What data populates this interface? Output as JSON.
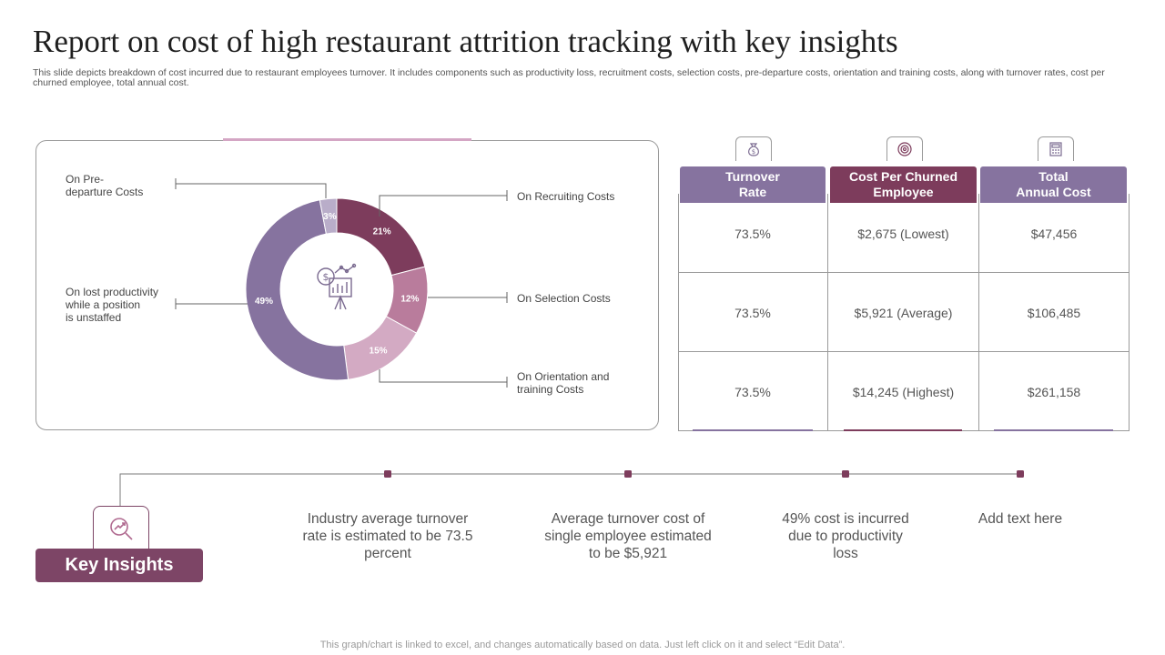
{
  "title": "Report on cost of high restaurant attrition tracking with key insights",
  "description": "This slide depicts breakdown of cost incurred due to restaurant employees turnover. It includes components such as productivity loss, recruitment costs, selection costs, pre-departure costs, orientation and training costs, along with turnover rates, cost per churned employee, total annual cost.",
  "chart_data": {
    "type": "pie",
    "variant": "donut",
    "categories": [
      "On Recruiting Costs",
      "On Selection Costs",
      "On Orientation and training Costs",
      "On lost productivity while a position is unstaffed",
      "On Pre- departure Costs"
    ],
    "values": [
      21,
      12,
      15,
      49,
      3
    ],
    "data_labels": [
      "21%",
      "12%",
      "15%",
      "49%",
      "3%"
    ],
    "colors": [
      "#7d3c5c",
      "#b97c9c",
      "#d3aac3",
      "#86739f",
      "#b9adc9"
    ],
    "center_icon": "dollar-presentation-icon",
    "callouts": {
      "pre_departure": [
        "On Pre-",
        "departure Costs"
      ],
      "lost_productivity": [
        "On lost productivity",
        "while a position",
        "is unstaffed"
      ],
      "recruiting": [
        "On Recruiting Costs"
      ],
      "selection": [
        "On Selection Costs"
      ],
      "orientation": [
        "On Orientation and",
        "training Costs"
      ]
    }
  },
  "table": {
    "columns": [
      {
        "label_lines": [
          "Turnover",
          "Rate"
        ],
        "color": "#86739f",
        "icon": "money-bag-icon"
      },
      {
        "label_lines": [
          "Cost Per Churned",
          "Employee"
        ],
        "color": "#7d3c5c",
        "icon": "target-icon"
      },
      {
        "label_lines": [
          "Total",
          "Annual Cost"
        ],
        "color": "#86739f",
        "icon": "calculator-icon"
      }
    ],
    "rows": [
      [
        "73.5%",
        "$2,675 (Lowest)",
        "$47,456"
      ],
      [
        "73.5%",
        "$5,921 (Average)",
        "$106,485"
      ],
      [
        "73.5%",
        "$14,245 (Highest)",
        "$261,158"
      ]
    ]
  },
  "insights": {
    "button_label": "Key Insights",
    "icon": "magnifier-growth-icon",
    "items": [
      [
        "Industry  average turnover",
        "rate is estimated to be 73.5",
        "percent"
      ],
      [
        "Average turnover  cost of",
        "single employee estimated",
        "to be $5,921"
      ],
      [
        "49% cost is incurred",
        "due to productivity",
        "loss"
      ],
      [
        "Add text here"
      ]
    ]
  },
  "footer": "This graph/chart is linked to excel,  and changes automatically based on data. Just left click on it and select “Edit Data”."
}
